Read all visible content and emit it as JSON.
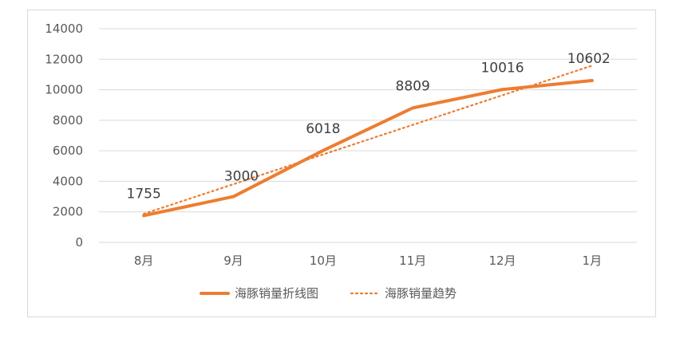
{
  "chart_data": {
    "type": "line",
    "categories": [
      "8月",
      "9月",
      "10月",
      "11月",
      "12月",
      "1月"
    ],
    "series": [
      {
        "name": "海豚销量折线图",
        "values": [
          1755,
          3000,
          6018,
          8809,
          10016,
          10602
        ],
        "color": "#ED7D31",
        "style": "solid"
      },
      {
        "name": "海豚销量趋势",
        "values": [
          1870,
          3810,
          5760,
          7700,
          9640,
          11580
        ],
        "color": "#ED7D31",
        "style": "dotted",
        "kind": "trendline"
      }
    ],
    "ylim": [
      0,
      14000
    ],
    "yticks": [
      0,
      2000,
      4000,
      6000,
      8000,
      10000,
      12000,
      14000
    ],
    "grid": true,
    "legend": "bottom",
    "title": "",
    "xlabel": "",
    "ylabel": ""
  }
}
